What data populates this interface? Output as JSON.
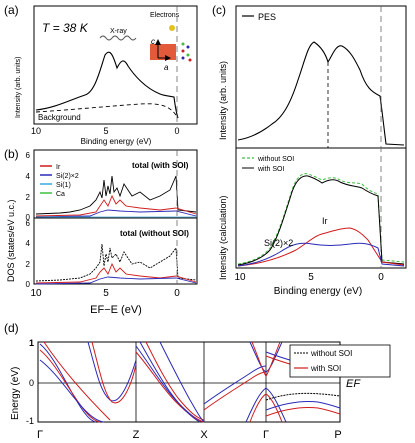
{
  "figure": {
    "panel_labels": [
      "(a)",
      "(b)",
      "(c)",
      "(d)"
    ],
    "panel_a": {
      "temperature": "T = 38 K",
      "xray_label": "X-ray",
      "electrons_label": "Electrons",
      "axis_c": "c",
      "axis_a": "a",
      "background_label": "Background",
      "ylabel": "Intensity (arb. units)",
      "xlabel": "Binding energy (eV)",
      "xticks": [
        "10",
        "5",
        "0"
      ]
    },
    "panel_b": {
      "ylabel": "DOS (states/eV u.c.)",
      "xlabel": "EF−E (eV)",
      "legend": [
        {
          "label": "Ir",
          "color": "#d01c1c"
        },
        {
          "label": "Si(2)×2",
          "color": "#2a2ab8"
        },
        {
          "label": "Si(1)",
          "color": "#3aa8e0"
        },
        {
          "label": "Ca",
          "color": "#3fbf3f"
        }
      ],
      "top_title": "total (with SOI)",
      "bottom_title": "total (without SOI)",
      "yticks": [
        "0",
        "2",
        "4",
        "6"
      ],
      "xticks": [
        "10",
        "5",
        "0"
      ]
    },
    "panel_c": {
      "top_legend": "PES",
      "top_ylabel": "Intensity (arb. units)",
      "bottom_ylabel": "Intensity (calculation)",
      "legend_without": "without SOI",
      "legend_with": "with SOI",
      "ir_label": "Ir",
      "si_label": "Si(2)×2",
      "xlabel": "Binding energy (eV)",
      "xticks": [
        "10",
        "5",
        "0"
      ]
    },
    "panel_d": {
      "ylabel": "Energy (eV)",
      "yticks": [
        "1",
        "0",
        "-1"
      ],
      "kpoints": [
        "Γ",
        "Z",
        "X",
        "Γ",
        "P"
      ],
      "legend_without": "without SOI",
      "legend_with": "with SOI",
      "ef_label": "EF"
    }
  },
  "chart_data": [
    {
      "type": "line",
      "panel": "a",
      "xlabel": "Binding energy (eV)",
      "ylabel": "Intensity (arb. units)",
      "xlim": [
        10,
        -1
      ],
      "x": [
        10,
        9,
        8,
        7,
        6,
        5,
        4.5,
        4,
        3.5,
        3,
        2,
        1.5,
        1,
        0.5,
        0
      ],
      "series": [
        {
          "name": "",
          "values": [
            0.05,
            0.1,
            0.2,
            0.3,
            0.35,
            0.8,
            0.9,
            0.75,
            0.8,
            0.82,
            0.55,
            0.45,
            0.4,
            0.38,
            0.1
          ]
        },
        {
          "name": "Background",
          "values": [
            0.05,
            0.06,
            0.08,
            0.1,
            0.12,
            0.15,
            0.16,
            0.17,
            0.18,
            0.18,
            0.17,
            0.16,
            0.14,
            0.12,
            0.05
          ]
        }
      ]
    },
    {
      "type": "line",
      "panel": "c-top",
      "xlabel": "Binding energy (eV)",
      "ylabel": "Intensity (arb. units)",
      "xlim": [
        10,
        -1
      ],
      "x": [
        10,
        9,
        8,
        7,
        6,
        5,
        4.5,
        4,
        3.5,
        3,
        2,
        1.5,
        1,
        0.5,
        0
      ],
      "series": [
        {
          "name": "PES",
          "values": [
            0.05,
            0.1,
            0.2,
            0.3,
            0.4,
            0.85,
            0.92,
            0.75,
            0.85,
            0.82,
            0.5,
            0.45,
            0.42,
            0.4,
            0.1
          ]
        }
      ]
    }
  ]
}
